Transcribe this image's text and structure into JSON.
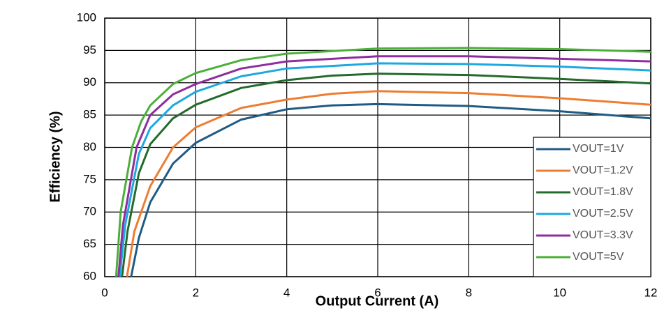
{
  "chart_data": {
    "type": "line",
    "xlabel": "Output Current (A)",
    "ylabel": "Efficiency (%)",
    "xlim": [
      0,
      12
    ],
    "xticks": [
      0,
      2,
      4,
      6,
      8,
      10,
      12
    ],
    "ylim": [
      60,
      100
    ],
    "yticks": [
      60,
      65,
      70,
      75,
      80,
      85,
      90,
      95,
      100
    ],
    "grid": true,
    "legend": "lower right",
    "series": [
      {
        "name": "VOUT=1V",
        "color": "#1f5b85",
        "x": [
          0.58,
          0.75,
          1,
          1.5,
          2,
          3,
          4,
          5,
          6,
          8,
          10,
          12
        ],
        "values": [
          60,
          66,
          71.5,
          77.5,
          80.7,
          84.3,
          85.9,
          86.5,
          86.7,
          86.4,
          85.6,
          84.5
        ]
      },
      {
        "name": "VOUT=1.2V",
        "color": "#ed7d31",
        "x": [
          0.49,
          0.65,
          1,
          1.5,
          2,
          3,
          4,
          5,
          6,
          8,
          10,
          12
        ],
        "values": [
          60,
          67,
          74,
          80,
          83.1,
          86.1,
          87.4,
          88.3,
          88.7,
          88.4,
          87.6,
          86.6
        ]
      },
      {
        "name": "VOUT=1.8V",
        "color": "#236b2b",
        "x": [
          0.38,
          0.5,
          0.75,
          1,
          1.5,
          2,
          3,
          4,
          5,
          6,
          8,
          10,
          12
        ],
        "values": [
          60,
          67,
          76,
          80.5,
          84.5,
          86.6,
          89.2,
          90.4,
          91.1,
          91.4,
          91.2,
          90.6,
          89.9
        ]
      },
      {
        "name": "VOUT=2.5V",
        "color": "#1ea8e0",
        "x": [
          0.33,
          0.45,
          0.75,
          1,
          1.5,
          2,
          3,
          4,
          6,
          8,
          10,
          12
        ],
        "values": [
          60,
          68,
          79,
          83,
          86.5,
          88.6,
          91,
          92.2,
          93,
          92.9,
          92.5,
          91.9
        ]
      },
      {
        "name": "VOUT=3.3V",
        "color": "#8e2d9e",
        "x": [
          0.3,
          0.4,
          0.7,
          1,
          1.5,
          2,
          3,
          4,
          6,
          8,
          10,
          12
        ],
        "values": [
          60,
          68,
          80,
          85,
          88.2,
          89.8,
          92.2,
          93.3,
          94.1,
          94.1,
          93.7,
          93.3
        ]
      },
      {
        "name": "VOUT=5V",
        "color": "#4caf3a",
        "x": [
          0.25,
          0.35,
          0.6,
          0.8,
          1,
          1.5,
          2,
          3,
          4,
          6,
          8,
          10,
          12
        ],
        "values": [
          60,
          70,
          80,
          84,
          86.5,
          89.8,
          91.5,
          93.5,
          94.5,
          95.3,
          95.4,
          95.2,
          94.8
        ]
      }
    ]
  }
}
